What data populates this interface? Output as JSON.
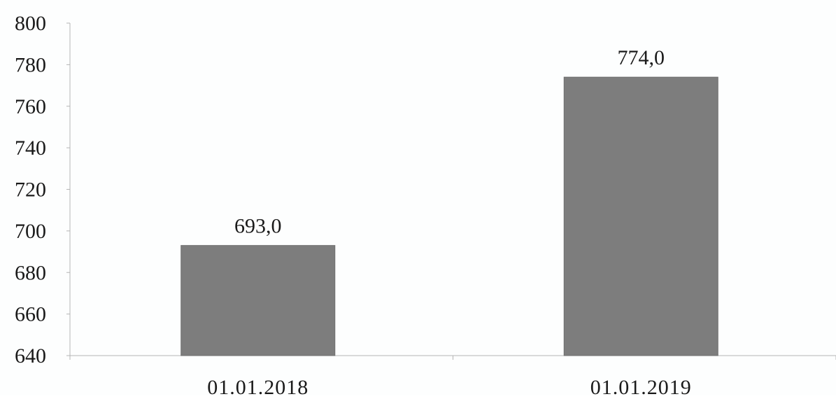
{
  "chart_data": {
    "type": "bar",
    "categories": [
      "01.01.2018",
      "01.01.2019"
    ],
    "values": [
      693.0,
      774.0
    ],
    "data_labels": [
      "693,0",
      "774,0"
    ],
    "title": "",
    "xlabel": "",
    "ylabel": "",
    "ylim": [
      640,
      800
    ],
    "yticks": [
      640,
      660,
      680,
      700,
      720,
      740,
      760,
      780,
      800
    ],
    "ytick_labels": [
      "640",
      "660",
      "680",
      "700",
      "720",
      "740",
      "760",
      "780",
      "800"
    ],
    "grid": false,
    "legend": "none",
    "bar_color": "#7d7d7d",
    "axis_color": "#b5b5b5"
  }
}
